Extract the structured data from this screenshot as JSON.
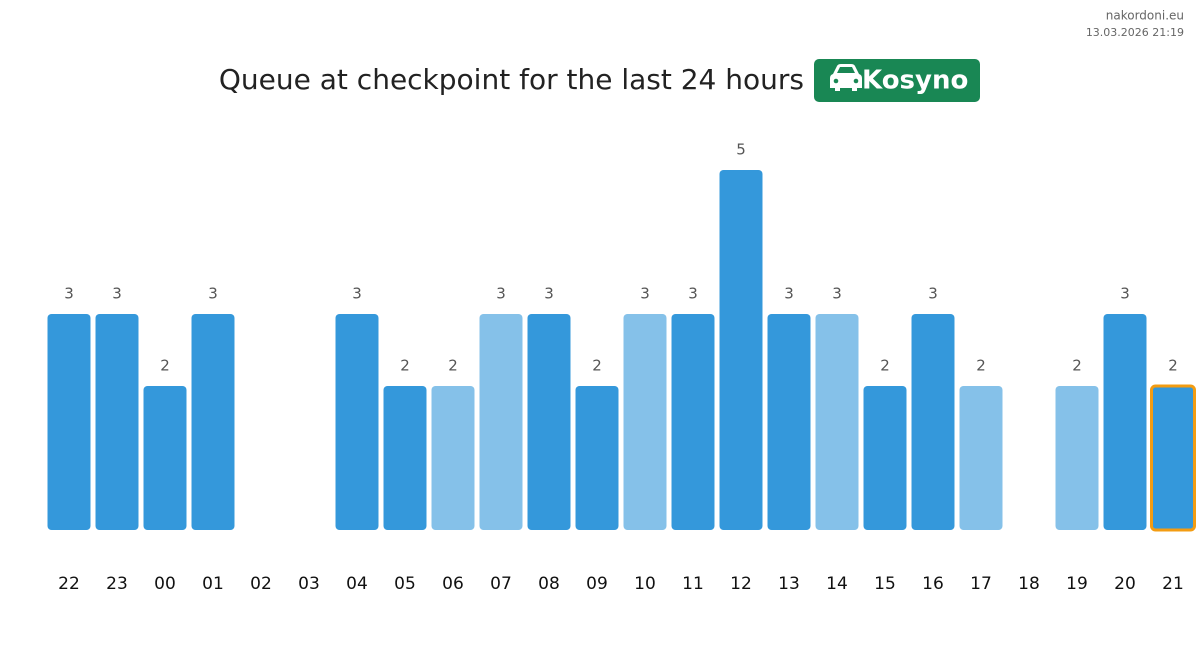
{
  "site": "nakordoni.eu",
  "timestamp": "13.03.2026 21:19",
  "chart_data": {
    "type": "bar",
    "title": "Queue at checkpoint for the last 24 hours",
    "checkpoint": "Kosyno",
    "categories": [
      "22",
      "23",
      "00",
      "01",
      "02",
      "03",
      "04",
      "05",
      "06",
      "07",
      "08",
      "09",
      "10",
      "11",
      "12",
      "13",
      "14",
      "15",
      "16",
      "17",
      "18",
      "19",
      "20",
      "21"
    ],
    "values": [
      3,
      3,
      2,
      3,
      null,
      null,
      3,
      2,
      2,
      3,
      3,
      2,
      3,
      3,
      5,
      3,
      3,
      2,
      3,
      2,
      null,
      2,
      3,
      2
    ],
    "colors": [
      "#3498db",
      "#3498db",
      "#3498db",
      "#3498db",
      null,
      null,
      "#3498db",
      "#3498db",
      "#85c1e9",
      "#85c1e9",
      "#3498db",
      "#3498db",
      "#85c1e9",
      "#3498db",
      "#3498db",
      "#3498db",
      "#85c1e9",
      "#3498db",
      "#3498db",
      "#85c1e9",
      null,
      "#85c1e9",
      "#3498db",
      "#3498db"
    ],
    "highlight_index": 23,
    "highlight_color": "#f39c12",
    "ylim": [
      0,
      5
    ]
  }
}
